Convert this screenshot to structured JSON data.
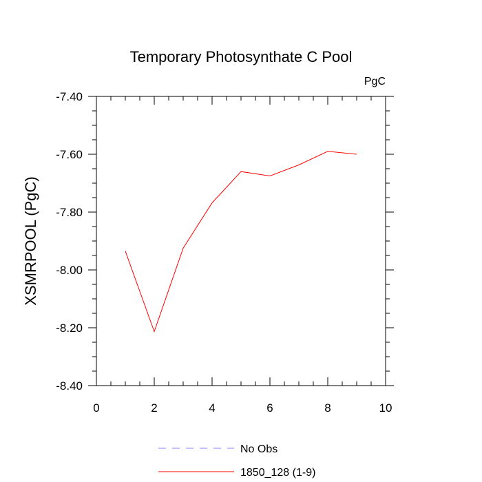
{
  "chart_data": {
    "type": "line",
    "title": "Temporary Photosynthate C Pool",
    "units_label": "PgC",
    "xlabel": "",
    "ylabel": "XSMRPOOL  (PgC)",
    "xlim": [
      0,
      10
    ],
    "ylim": [
      -8.4,
      -7.4
    ],
    "x_ticks": [
      0,
      2,
      4,
      6,
      8,
      10
    ],
    "x_tick_labels": [
      "0",
      "2",
      "4",
      "6",
      "8",
      "10"
    ],
    "y_ticks": [
      -7.4,
      -7.6,
      -7.8,
      -8.0,
      -8.2,
      -8.4
    ],
    "y_tick_labels": [
      "-7.40",
      "-7.60",
      "-7.80",
      "-8.00",
      "-8.20",
      "-8.40"
    ],
    "grid": false,
    "legend_position": "bottom",
    "series": [
      {
        "name": "1850_128 (1-9)",
        "color": "#ff0000",
        "dash": "solid",
        "x": [
          1,
          2,
          3,
          4,
          5,
          6,
          7,
          8,
          9
        ],
        "y": [
          -7.935,
          -8.213,
          -7.925,
          -7.768,
          -7.66,
          -7.675,
          -7.637,
          -7.59,
          -7.6
        ]
      }
    ],
    "legend": [
      {
        "label": "No Obs",
        "color": "#8080ff",
        "dash": "dashed"
      },
      {
        "label": "1850_128 (1-9)",
        "color": "#ff0000",
        "dash": "solid"
      }
    ]
  }
}
